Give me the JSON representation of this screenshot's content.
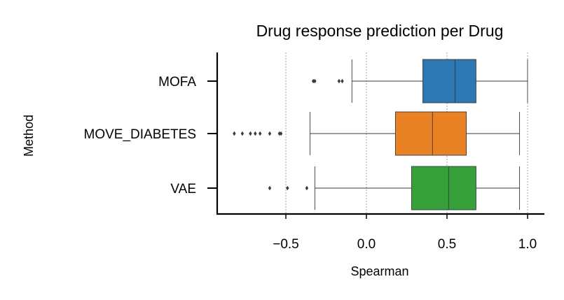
{
  "chart_data": {
    "type": "boxplot",
    "orientation": "horizontal",
    "title": "Drug response prediction per Drug",
    "xlabel": "Spearman",
    "ylabel": "Method",
    "xlim": [
      -0.9,
      1.1
    ],
    "x_ticks": [
      -0.5,
      0.0,
      0.5,
      1.0
    ],
    "x_tick_labels": [
      "−0.5",
      "0.0",
      "0.5",
      "1.0"
    ],
    "grid": "vertical dotted",
    "legend": "none",
    "series": [
      {
        "category": "MOFA",
        "color": "#2d77b2",
        "whisker_low": -0.09,
        "q1": 0.35,
        "median": 0.55,
        "q3": 0.68,
        "whisker_high": 1.0,
        "outliers": [
          -0.33,
          -0.32,
          -0.17,
          -0.15
        ]
      },
      {
        "category": "MOVE_DIABETES",
        "color": "#e88225",
        "whisker_low": -0.35,
        "q1": 0.18,
        "median": 0.41,
        "q3": 0.62,
        "whisker_high": 0.95,
        "outliers": [
          -0.82,
          -0.77,
          -0.72,
          -0.69,
          -0.66,
          -0.6,
          -0.54,
          -0.53
        ]
      },
      {
        "category": "VAE",
        "color": "#36a13a",
        "whisker_low": -0.32,
        "q1": 0.28,
        "median": 0.51,
        "q3": 0.68,
        "whisker_high": 0.95,
        "outliers": [
          -0.6,
          -0.49,
          -0.37
        ]
      }
    ]
  }
}
